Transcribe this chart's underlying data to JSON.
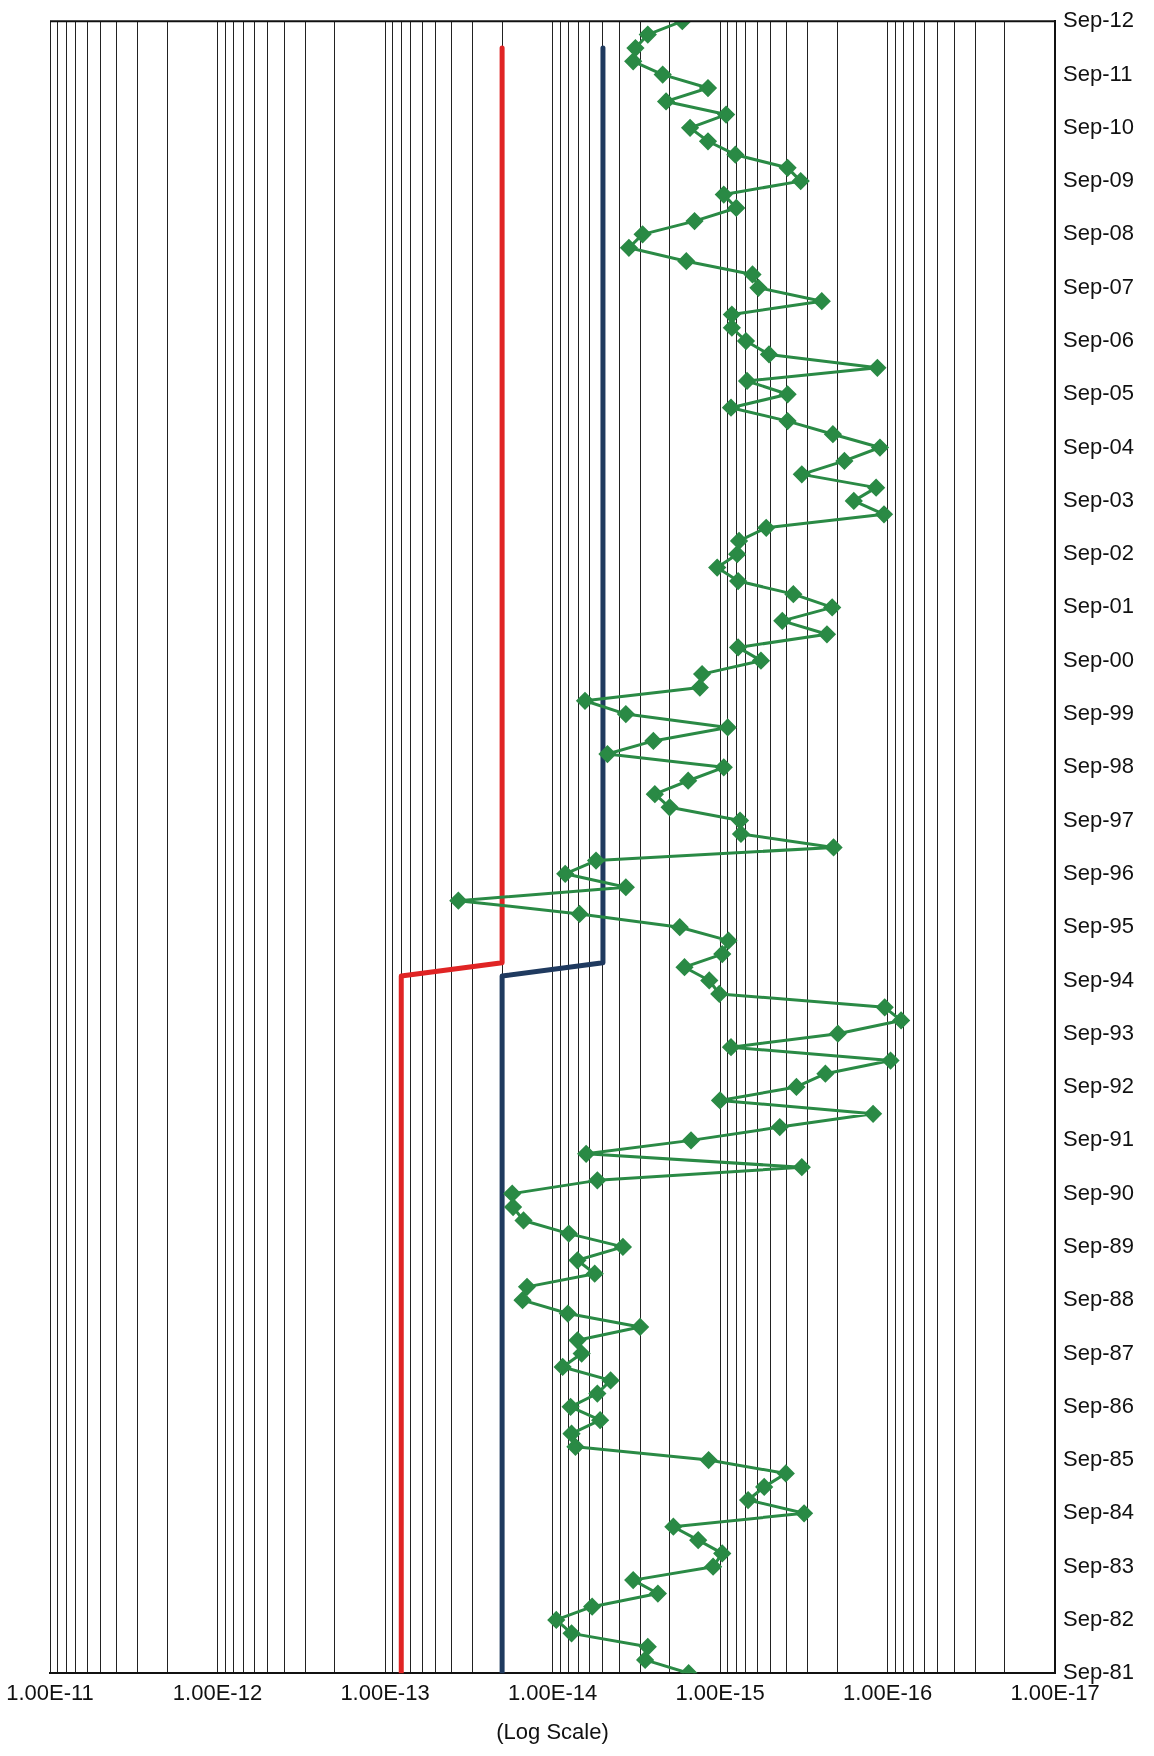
{
  "chart_data": {
    "type": "line",
    "orientation": "horizontal",
    "xlabel": "(Log Scale)",
    "log": "x",
    "grid": "x",
    "legend": false,
    "marker": "diamond",
    "ylim": [
      "1981-09",
      "2012-09"
    ],
    "yticks": [
      {
        "value": "1981-09",
        "label": "Sep-81"
      },
      {
        "value": "1982-09",
        "label": "Sep-82"
      },
      {
        "value": "1983-09",
        "label": "Sep-83"
      },
      {
        "value": "1984-09",
        "label": "Sep-84"
      },
      {
        "value": "1985-09",
        "label": "Sep-85"
      },
      {
        "value": "1986-09",
        "label": "Sep-86"
      },
      {
        "value": "1987-09",
        "label": "Sep-87"
      },
      {
        "value": "1988-09",
        "label": "Sep-88"
      },
      {
        "value": "1989-09",
        "label": "Sep-89"
      },
      {
        "value": "1990-09",
        "label": "Sep-90"
      },
      {
        "value": "1991-09",
        "label": "Sep-91"
      },
      {
        "value": "1992-09",
        "label": "Sep-92"
      },
      {
        "value": "1993-09",
        "label": "Sep-93"
      },
      {
        "value": "1994-09",
        "label": "Sep-94"
      },
      {
        "value": "1995-09",
        "label": "Sep-95"
      },
      {
        "value": "1996-09",
        "label": "Sep-96"
      },
      {
        "value": "1997-09",
        "label": "Sep-97"
      },
      {
        "value": "1998-09",
        "label": "Sep-98"
      },
      {
        "value": "1999-09",
        "label": "Sep-99"
      },
      {
        "value": "2000-09",
        "label": "Sep-00"
      },
      {
        "value": "2001-09",
        "label": "Sep-01"
      },
      {
        "value": "2002-09",
        "label": "Sep-02"
      },
      {
        "value": "2003-09",
        "label": "Sep-03"
      },
      {
        "value": "2004-09",
        "label": "Sep-04"
      },
      {
        "value": "2005-09",
        "label": "Sep-05"
      },
      {
        "value": "2006-09",
        "label": "Sep-06"
      },
      {
        "value": "2007-09",
        "label": "Sep-07"
      },
      {
        "value": "2008-09",
        "label": "Sep-08"
      },
      {
        "value": "2009-09",
        "label": "Sep-09"
      },
      {
        "value": "2010-09",
        "label": "Sep-10"
      },
      {
        "value": "2011-09",
        "label": "Sep-11"
      },
      {
        "value": "2012-09",
        "label": "Sep-12"
      }
    ],
    "xlim": [
      1e-11,
      1e-17
    ],
    "xticks": [
      {
        "value": 1e-17,
        "label": "1.00E-17"
      },
      {
        "value": 2e-17,
        "label": null
      },
      {
        "value": 3e-17,
        "label": null
      },
      {
        "value": 4e-17,
        "label": null
      },
      {
        "value": 5e-17,
        "label": null
      },
      {
        "value": 6e-17,
        "label": null
      },
      {
        "value": 7e-17,
        "label": null
      },
      {
        "value": 8e-17,
        "label": null
      },
      {
        "value": 9e-17,
        "label": null
      },
      {
        "value": 1e-16,
        "label": "1.00E-16"
      },
      {
        "value": 2e-16,
        "label": null
      },
      {
        "value": 3e-16,
        "label": null
      },
      {
        "value": 4e-16,
        "label": null
      },
      {
        "value": 5e-16,
        "label": null
      },
      {
        "value": 6e-16,
        "label": null
      },
      {
        "value": 7e-16,
        "label": null
      },
      {
        "value": 8e-16,
        "label": null
      },
      {
        "value": 9e-16,
        "label": null
      },
      {
        "value": 1e-15,
        "label": "1.00E-15"
      },
      {
        "value": 2e-15,
        "label": null
      },
      {
        "value": 3e-15,
        "label": null
      },
      {
        "value": 4e-15,
        "label": null
      },
      {
        "value": 5e-15,
        "label": null
      },
      {
        "value": 6e-15,
        "label": null
      },
      {
        "value": 7e-15,
        "label": null
      },
      {
        "value": 8e-15,
        "label": null
      },
      {
        "value": 9e-15,
        "label": null
      },
      {
        "value": 1e-14,
        "label": "1.00E-14"
      },
      {
        "value": 2e-14,
        "label": null
      },
      {
        "value": 3e-14,
        "label": null
      },
      {
        "value": 4e-14,
        "label": null
      },
      {
        "value": 5e-14,
        "label": null
      },
      {
        "value": 6e-14,
        "label": null
      },
      {
        "value": 7e-14,
        "label": null
      },
      {
        "value": 8e-14,
        "label": null
      },
      {
        "value": 9e-14,
        "label": null
      },
      {
        "value": 1e-13,
        "label": "1.00E-13"
      },
      {
        "value": 2e-13,
        "label": null
      },
      {
        "value": 3e-13,
        "label": null
      },
      {
        "value": 4e-13,
        "label": null
      },
      {
        "value": 5e-13,
        "label": null
      },
      {
        "value": 6e-13,
        "label": null
      },
      {
        "value": 7e-13,
        "label": null
      },
      {
        "value": 8e-13,
        "label": null
      },
      {
        "value": 9e-13,
        "label": null
      },
      {
        "value": 1e-12,
        "label": "1.00E-12"
      },
      {
        "value": 2e-12,
        "label": null
      },
      {
        "value": 3e-12,
        "label": null
      },
      {
        "value": 4e-12,
        "label": null
      },
      {
        "value": 5e-12,
        "label": null
      },
      {
        "value": 6e-12,
        "label": null
      },
      {
        "value": 7e-12,
        "label": null
      },
      {
        "value": 8e-12,
        "label": null
      },
      {
        "value": 9e-12,
        "label": null
      },
      {
        "value": 1e-11,
        "label": "1.00E-11"
      }
    ],
    "series": [
      {
        "color": "#e02424",
        "marker": "none",
        "x": [
          "1981-09",
          "1994-10",
          "1995-01",
          "2012-03"
        ],
        "values": [
          8e-14,
          8e-14,
          2e-14,
          2e-14
        ]
      },
      {
        "color": "#1f3a5f",
        "marker": "none",
        "x": [
          "1981-09",
          "1994-10",
          "1995-01",
          "2012-03"
        ],
        "values": [
          2e-14,
          2e-14,
          5e-15,
          5e-15
        ]
      },
      {
        "color": "#2a8a45",
        "x": [
          "1981-09",
          "1981-12",
          "1982-03",
          "1982-06",
          "1982-09",
          "1982-12",
          "1983-03",
          "1983-06",
          "1983-09",
          "1983-12",
          "1984-03",
          "1984-06",
          "1984-09",
          "1984-12",
          "1985-03",
          "1985-06",
          "1985-09",
          "1985-12",
          "1986-03",
          "1986-06",
          "1986-09",
          "1986-12",
          "1987-03",
          "1987-06",
          "1987-09",
          "1987-12",
          "1988-03",
          "1988-06",
          "1988-09",
          "1988-12",
          "1989-03",
          "1989-06",
          "1989-09",
          "1989-12",
          "1990-03",
          "1990-06",
          "1990-09",
          "1990-12",
          "1991-03",
          "1991-06",
          "1991-09",
          "1991-12",
          "1992-03",
          "1992-06",
          "1992-09",
          "1992-12",
          "1993-03",
          "1993-06",
          "1993-09",
          "1993-12",
          "1994-03",
          "1994-06",
          "1994-09",
          "1994-12",
          "1995-03",
          "1995-06",
          "1995-09",
          "1995-12",
          "1996-03",
          "1996-06",
          "1996-09",
          "1996-12",
          "1997-03",
          "1997-06",
          "1997-09",
          "1997-12",
          "1998-03",
          "1998-06",
          "1998-09",
          "1998-12",
          "1999-03",
          "1999-06",
          "1999-09",
          "1999-12",
          "2000-03",
          "2000-06",
          "2000-09",
          "2000-12",
          "2001-03",
          "2001-06",
          "2001-09",
          "2001-12",
          "2002-03",
          "2002-06",
          "2002-09",
          "2002-12",
          "2003-03",
          "2003-06",
          "2003-09",
          "2003-12",
          "2004-03",
          "2004-06",
          "2004-09",
          "2004-12",
          "2005-03",
          "2005-06",
          "2005-09",
          "2005-12",
          "2006-03",
          "2006-06",
          "2006-09",
          "2006-12",
          "2007-03",
          "2007-06",
          "2007-09",
          "2007-12",
          "2008-03",
          "2008-06",
          "2008-09",
          "2008-12",
          "2009-03",
          "2009-06",
          "2009-09",
          "2009-12",
          "2010-03",
          "2010-06",
          "2010-09",
          "2010-12",
          "2011-03",
          "2011-06",
          "2011-09",
          "2011-12",
          "2012-03",
          "2012-06",
          "2012-09"
        ],
        "values": [
          1.54e-15,
          2.8e-15,
          2.7e-15,
          7.7e-15,
          9.5e-15,
          5.8e-15,
          2.35e-15,
          3.3e-15,
          1.1e-15,
          9.7e-16,
          1.35e-15,
          1.9e-15,
          3.15e-16,
          6.8e-16,
          5.45e-16,
          4.05e-16,
          1.17e-15,
          7.3e-15,
          7.7e-15,
          5.2e-15,
          7.8e-15,
          5.4e-15,
          4.5e-15,
          8.7e-15,
          6.7e-15,
          7.1e-15,
          3e-15,
          8.1e-15,
          1.51e-14,
          1.42e-14,
          5.6e-15,
          7.1e-15,
          3.8e-15,
          8e-15,
          1.49e-14,
          1.72e-14,
          1.74e-14,
          5.4e-15,
          3.25e-16,
          6.3e-15,
          1.49e-15,
          4.4e-16,
          1.22e-16,
          1e-15,
          3.5e-16,
          2.35e-16,
          9.6e-17,
          8.6e-16,
          1.98e-16,
          8.3e-17,
          1.04e-16,
          1.01e-15,
          1.16e-15,
          1.63e-15,
          9.7e-16,
          8.9e-16,
          1.74e-15,
          6.9e-15,
          3.65e-14,
          3.65e-15,
          8.4e-15,
          5.5e-15,
          2.1e-16,
          7.5e-16,
          7.6e-16,
          2e-15,
          2.45e-15,
          1.55e-15,
          9.5e-16,
          4.7e-15,
          2.5e-15,
          9e-16,
          3.65e-15,
          6.4e-15,
          1.32e-15,
          1.28e-15,
          5.7e-16,
          7.8e-16,
          2.3e-16,
          4.25e-16,
          2.14e-16,
          3.65e-16,
          7.8e-16,
          1.04e-15,
          7.9e-16,
          7.7e-16,
          5.3e-16,
          1.05e-16,
          1.59e-16,
          1.17e-16,
          3.25e-16,
          1.81e-16,
          1.11e-16,
          2.12e-16,
          3.95e-16,
          8.6e-16,
          3.95e-16,
          6.9e-16,
          1.15e-16,
          5.1e-16,
          7e-16,
          8.5e-16,
          8.5e-16,
          2.47e-16,
          5.9e-16,
          6.4e-16,
          1.59e-15,
          3.5e-15,
          2.9e-15,
          1.42e-15,
          8e-16,
          9.5e-16,
          3.3e-16,
          3.95e-16,
          8.1e-16,
          1.18e-15,
          1.51e-15,
          9.2e-16,
          2.1e-15,
          1.18e-15,
          2.2e-15,
          3.3e-15,
          3.2e-15,
          2.7e-15,
          1.68e-15
        ]
      }
    ]
  }
}
